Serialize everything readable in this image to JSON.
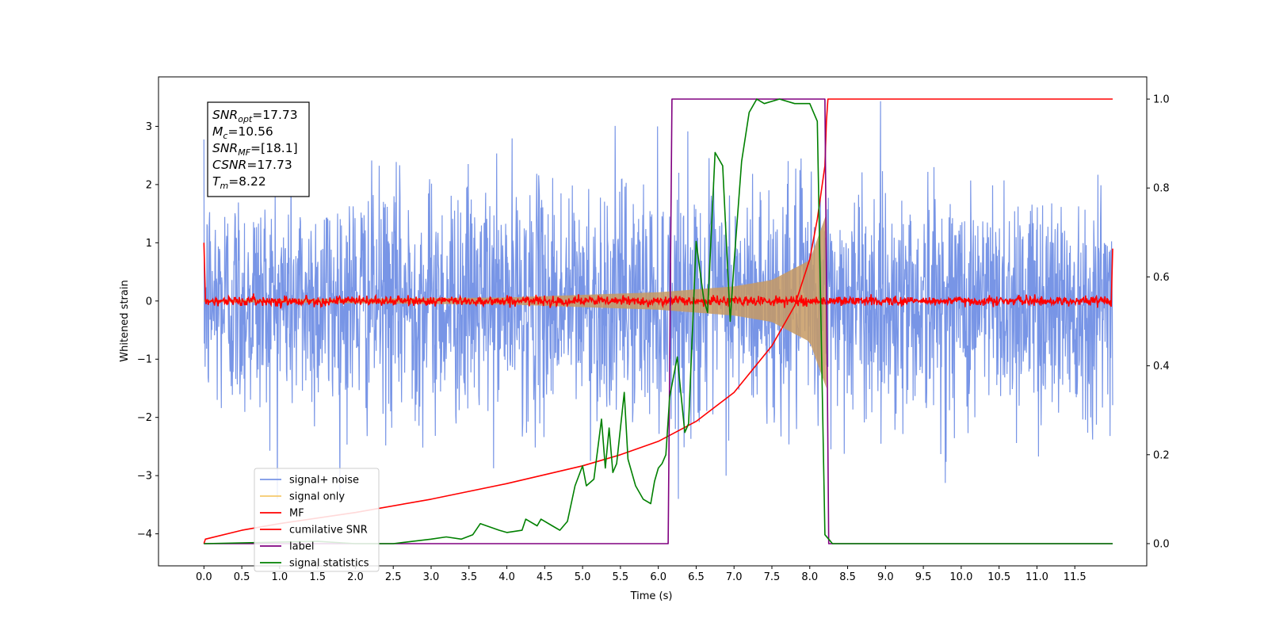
{
  "chart_data": {
    "type": "line",
    "xlabel": "Time (s)",
    "ylabel": "Whitened strain",
    "xlim": [
      -0.6,
      12.45
    ],
    "ylim": [
      -4.55,
      3.85
    ],
    "y2lim": [
      -0.05,
      1.05
    ],
    "grid": false,
    "xticks": [
      "0.0",
      "0.5",
      "1.0",
      "1.5",
      "2.0",
      "2.5",
      "3.0",
      "3.5",
      "4.0",
      "4.5",
      "5.0",
      "5.5",
      "6.0",
      "6.5",
      "7.0",
      "7.5",
      "8.0",
      "8.5",
      "9.0",
      "9.5",
      "10.0",
      "10.5",
      "11.0",
      "11.5"
    ],
    "yticks": [
      "3",
      "2",
      "1",
      "0",
      "−1",
      "−2",
      "−3",
      "−4"
    ],
    "y2ticks": [
      "1.0",
      "0.8",
      "0.6",
      "0.4",
      "0.2",
      "0.0"
    ],
    "annotation": {
      "snr_opt": {
        "base": "SNR",
        "sub": "opt",
        "value": "=17.73"
      },
      "mc": {
        "base": "M",
        "sub": "c",
        "value": "=10.56"
      },
      "snr_mf": {
        "base": "SNR",
        "sub": "MF",
        "value": "=[18.1]"
      },
      "csnr": {
        "base": "CSNR",
        "value": "=17.73"
      },
      "tm": {
        "base": "T",
        "sub": "m",
        "value": "=8.22"
      }
    },
    "legend": {
      "placement": "lower-left",
      "entries": [
        "signal+ noise",
        "signal only",
        "MF",
        "cumilative SNR",
        "label",
        "signal statistics"
      ]
    },
    "series": [
      {
        "name": "signal+ noise",
        "axis": "left",
        "color": "#7895e6",
        "description_values": {
          "x_range": [
            0,
            12
          ],
          "amplitude_std": 1.0,
          "peak_range": [
            -3.4,
            3.5
          ]
        }
      },
      {
        "name": "signal only",
        "axis": "left",
        "color": "#f5c96b",
        "chirp_end": 8.22,
        "envelope": {
          "x": [
            0,
            4,
            6,
            7,
            7.5,
            8.0,
            8.22
          ],
          "y": [
            0.02,
            0.06,
            0.15,
            0.25,
            0.36,
            0.7,
            1.5
          ]
        }
      },
      {
        "name": "MF",
        "axis": "left",
        "color": "#ff0000",
        "description_values": {
          "x_range": [
            0,
            12
          ],
          "baseline": 0,
          "edge_value": 1.0
        }
      },
      {
        "name": "cumilative SNR",
        "axis": "right",
        "color": "#ff0000",
        "x": [
          0,
          0.02,
          0.5,
          1.0,
          2.0,
          3.0,
          4.0,
          5.0,
          5.5,
          6.0,
          6.5,
          7.0,
          7.5,
          7.8,
          8.0,
          8.1,
          8.2,
          8.22,
          8.24,
          12.0
        ],
        "y": [
          0.0,
          0.01,
          0.03,
          0.045,
          0.07,
          0.1,
          0.135,
          0.175,
          0.2,
          0.23,
          0.275,
          0.34,
          0.445,
          0.535,
          0.64,
          0.73,
          0.85,
          0.95,
          1.0,
          1.0
        ]
      },
      {
        "name": "label",
        "axis": "right",
        "color": "#800080",
        "x": [
          0,
          6.13,
          6.18,
          8.2,
          8.25,
          12.0
        ],
        "y": [
          0,
          0,
          1,
          1,
          0,
          0
        ]
      },
      {
        "name": "signal statistics",
        "axis": "right",
        "color": "#008000",
        "x": [
          0,
          1.5,
          2.0,
          2.5,
          3.0,
          3.2,
          3.4,
          3.55,
          3.65,
          3.9,
          4.0,
          4.2,
          4.25,
          4.4,
          4.45,
          4.6,
          4.7,
          4.8,
          4.9,
          5.0,
          5.05,
          5.15,
          5.25,
          5.3,
          5.35,
          5.4,
          5.45,
          5.55,
          5.6,
          5.7,
          5.8,
          5.9,
          5.95,
          6.0,
          6.05,
          6.1,
          6.15,
          6.25,
          6.35,
          6.4,
          6.5,
          6.6,
          6.65,
          6.75,
          6.85,
          6.95,
          7.0,
          7.1,
          7.2,
          7.3,
          7.4,
          7.6,
          7.8,
          8.0,
          8.1,
          8.2,
          8.25,
          8.3,
          12.0
        ],
        "y": [
          0.0,
          0.005,
          0.0,
          0.0,
          0.01,
          0.015,
          0.01,
          0.02,
          0.045,
          0.03,
          0.025,
          0.03,
          0.055,
          0.04,
          0.055,
          0.04,
          0.03,
          0.05,
          0.13,
          0.175,
          0.13,
          0.145,
          0.28,
          0.17,
          0.26,
          0.16,
          0.18,
          0.34,
          0.19,
          0.13,
          0.1,
          0.09,
          0.14,
          0.17,
          0.18,
          0.2,
          0.33,
          0.42,
          0.25,
          0.27,
          0.68,
          0.55,
          0.52,
          0.88,
          0.85,
          0.5,
          0.63,
          0.86,
          0.97,
          1.0,
          0.99,
          1.0,
          0.99,
          0.99,
          0.95,
          0.02,
          0.01,
          0.0,
          0.0
        ]
      }
    ]
  }
}
